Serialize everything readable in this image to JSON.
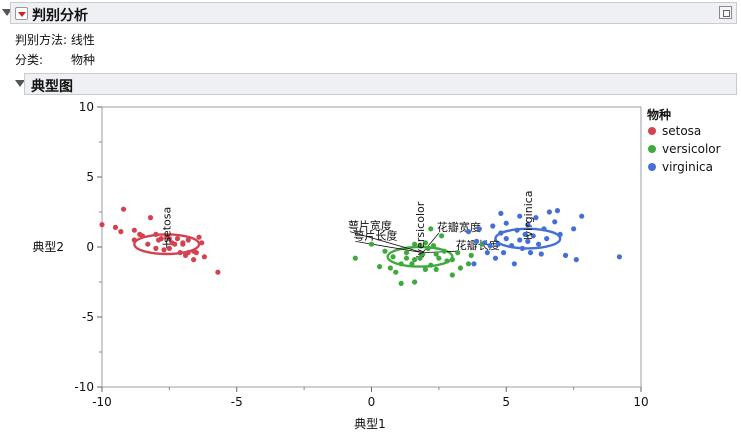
{
  "report": {
    "title": "判别分析",
    "method_label": "判别方法:",
    "method_value": "线性",
    "class_label": "分类:",
    "class_value": "物种",
    "section_title": "典型图"
  },
  "colors": {
    "setosa": "#d4424f",
    "versicolor": "#3daa3d",
    "virginica": "#4470d6"
  },
  "chart_data": {
    "type": "scatter",
    "xlabel": "典型1",
    "ylabel": "典型2",
    "xlim": [
      -10,
      10
    ],
    "ylim": [
      -10,
      10
    ],
    "xticks": [
      -10,
      -5,
      0,
      5,
      10
    ],
    "yticks": [
      10,
      5,
      0,
      -5,
      -10
    ],
    "legend_title": "物种",
    "legend_position": "right",
    "series": [
      {
        "name": "setosa",
        "color": "#d4424f",
        "center": [
          -7.6,
          0.2
        ],
        "ellipse_radii": [
          1.2,
          0.7
        ],
        "points": [
          [
            -10,
            1.6
          ],
          [
            -9.5,
            1.4
          ],
          [
            -9.2,
            2.7
          ],
          [
            -9.3,
            1.1
          ],
          [
            -8.8,
            1.2
          ],
          [
            -8.2,
            2.1
          ],
          [
            -8,
            0.9
          ],
          [
            -8.8,
            0.5
          ],
          [
            -8.5,
            0.8
          ],
          [
            -8.3,
            0.2
          ],
          [
            -8,
            -0.1
          ],
          [
            -7.8,
            0.6
          ],
          [
            -7.6,
            0.7
          ],
          [
            -7.4,
            0.3
          ],
          [
            -7.3,
            0.2
          ],
          [
            -7.5,
            -0.1
          ],
          [
            -7.2,
            0.6
          ],
          [
            -7,
            0.3
          ],
          [
            -7.1,
            -0.4
          ],
          [
            -6.9,
            -0.6
          ],
          [
            -6.6,
            -0.9
          ],
          [
            -6.5,
            -0.4
          ],
          [
            -6.3,
            0.3
          ],
          [
            -6.2,
            -0.7
          ],
          [
            -6.8,
            0.5
          ],
          [
            -6.4,
            0.7
          ],
          [
            -7.9,
            0.5
          ],
          [
            -8.6,
            0.9
          ],
          [
            -7.7,
            -0.2
          ],
          [
            -7,
            0.2
          ],
          [
            -5.7,
            -1.8
          ],
          [
            -6.8,
            -0.4
          ],
          [
            -6.6,
            -0.3
          ],
          [
            -7.5,
            0.6
          ]
        ]
      },
      {
        "name": "versicolor",
        "color": "#3daa3d",
        "center": [
          1.8,
          -0.7
        ],
        "ellipse_radii": [
          1.2,
          0.7
        ],
        "points": [
          [
            -0.6,
            -0.8
          ],
          [
            0,
            0.2
          ],
          [
            0.3,
            -1.4
          ],
          [
            0.7,
            -1.5
          ],
          [
            0.8,
            -0.7
          ],
          [
            0.9,
            -1.8
          ],
          [
            1.1,
            -1.2
          ],
          [
            1.1,
            -2.6
          ],
          [
            1.3,
            -0.8
          ],
          [
            1.5,
            -1.2
          ],
          [
            1.6,
            -0.9
          ],
          [
            1.6,
            0.2
          ],
          [
            1.8,
            -0.8
          ],
          [
            1.8,
            0.1
          ],
          [
            1.9,
            -0.5
          ],
          [
            2,
            0.3
          ],
          [
            2.1,
            -0.1
          ],
          [
            2.2,
            -1.3
          ],
          [
            2.3,
            0.1
          ],
          [
            2.4,
            -0.5
          ],
          [
            2.4,
            -1.6
          ],
          [
            2.5,
            -0.8
          ],
          [
            2.6,
            0.8
          ],
          [
            2.7,
            -0.3
          ],
          [
            2.8,
            -1
          ],
          [
            3,
            -0.9
          ],
          [
            3,
            -2
          ],
          [
            3.2,
            -0.4
          ],
          [
            3.3,
            -1.5
          ],
          [
            1.6,
            -2.5
          ],
          [
            3.7,
            -0.6
          ],
          [
            3.6,
            -1.2
          ],
          [
            4.1,
            0.2
          ],
          [
            2.2,
            1.3
          ],
          [
            1.3,
            -0.4
          ],
          [
            2,
            -1.6
          ],
          [
            0.5,
            -0.3
          ]
        ]
      },
      {
        "name": "virginica",
        "color": "#4470d6",
        "center": [
          5.8,
          0.6
        ],
        "ellipse_radii": [
          1.2,
          0.7
        ],
        "points": [
          [
            3.6,
            1.1
          ],
          [
            3.8,
            -1.2
          ],
          [
            4,
            1.3
          ],
          [
            4.2,
            0.3
          ],
          [
            4.3,
            -0.4
          ],
          [
            4.4,
            0.1
          ],
          [
            4.5,
            1.5
          ],
          [
            4.6,
            -0.8
          ],
          [
            4.7,
            0.2
          ],
          [
            4.8,
            1
          ],
          [
            4.9,
            -0.4
          ],
          [
            5,
            0.6
          ],
          [
            5,
            1.7
          ],
          [
            5.2,
            0.1
          ],
          [
            5.3,
            -1.2
          ],
          [
            5.4,
            1.2
          ],
          [
            5.5,
            0.5
          ],
          [
            5.5,
            2.2
          ],
          [
            5.6,
            -0.1
          ],
          [
            5.7,
            0.9
          ],
          [
            5.8,
            0.4
          ],
          [
            5.8,
            1.6
          ],
          [
            5.9,
            -0.4
          ],
          [
            6,
            0.8
          ],
          [
            6.1,
            2.1
          ],
          [
            6.2,
            0.2
          ],
          [
            6.3,
            -0.5
          ],
          [
            6.4,
            1.3
          ],
          [
            6.5,
            0.6
          ],
          [
            6.6,
            2.5
          ],
          [
            6.8,
            1.8
          ],
          [
            6.9,
            2.6
          ],
          [
            7,
            0.9
          ],
          [
            7.2,
            -0.6
          ],
          [
            7.5,
            1.3
          ],
          [
            7.6,
            -0.9
          ],
          [
            7.8,
            2.2
          ],
          [
            9.2,
            -0.7
          ],
          [
            4.8,
            2.4
          ],
          [
            3.9,
            0.4
          ]
        ]
      }
    ],
    "center_labels": [
      {
        "text": "setosa",
        "x": -7.6,
        "y": 0.3
      },
      {
        "text": "versicolor",
        "x": 1.8,
        "y": -0.6
      },
      {
        "text": "virginica",
        "x": 5.8,
        "y": 0.7
      }
    ],
    "biplot_origin": [
      1.9,
      -0.4
    ],
    "biplot_rays": [
      {
        "label": "萼片宽度",
        "end": [
          -0.8,
          1.1
        ]
      },
      {
        "label": "萼片长度",
        "end": [
          -0.6,
          0.4
        ]
      },
      {
        "label": "花瓣宽度",
        "end": [
          2.5,
          1.0
        ]
      },
      {
        "label": "花瓣长度",
        "end": [
          3.2,
          -0.3
        ]
      }
    ]
  }
}
